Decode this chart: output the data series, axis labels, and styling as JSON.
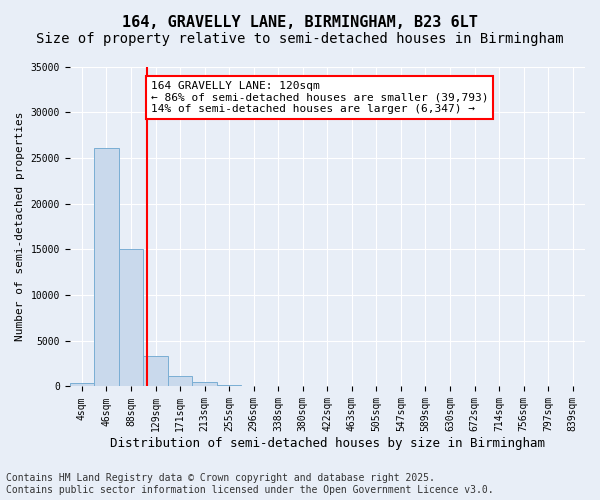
{
  "title": "164, GRAVELLY LANE, BIRMINGHAM, B23 6LT",
  "subtitle": "Size of property relative to semi-detached houses in Birmingham",
  "xlabel": "Distribution of semi-detached houses by size in Birmingham",
  "ylabel": "Number of semi-detached properties",
  "bin_labels": [
    "4sqm",
    "46sqm",
    "88sqm",
    "129sqm",
    "171sqm",
    "213sqm",
    "255sqm",
    "296sqm",
    "338sqm",
    "380sqm",
    "422sqm",
    "463sqm",
    "505sqm",
    "547sqm",
    "589sqm",
    "630sqm",
    "672sqm",
    "714sqm",
    "756sqm",
    "797sqm",
    "839sqm"
  ],
  "bar_values": [
    400,
    26100,
    15050,
    3300,
    1200,
    450,
    200,
    80,
    0,
    0,
    0,
    0,
    0,
    0,
    0,
    0,
    0,
    0,
    0,
    0,
    0
  ],
  "bar_color": "#c9d9ec",
  "bar_edge_color": "#7aaed4",
  "vline_x": 2.65,
  "vline_color": "red",
  "annotation_text": "164 GRAVELLY LANE: 120sqm\n← 86% of semi-detached houses are smaller (39,793)\n14% of semi-detached houses are larger (6,347) →",
  "annotation_box_color": "white",
  "annotation_box_edge": "red",
  "ylim": [
    0,
    35000
  ],
  "yticks": [
    0,
    5000,
    10000,
    15000,
    20000,
    25000,
    30000,
    35000
  ],
  "bg_color": "#e8eef7",
  "footnote": "Contains HM Land Registry data © Crown copyright and database right 2025.\nContains public sector information licensed under the Open Government Licence v3.0.",
  "title_fontsize": 11,
  "subtitle_fontsize": 10,
  "xlabel_fontsize": 9,
  "ylabel_fontsize": 8,
  "tick_fontsize": 7,
  "annotation_fontsize": 8,
  "footnote_fontsize": 7
}
